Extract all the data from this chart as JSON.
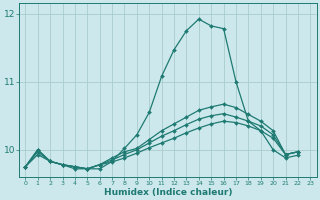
{
  "xlabel": "Humidex (Indice chaleur)",
  "xlim": [
    -0.5,
    23.5
  ],
  "ylim": [
    9.6,
    12.15
  ],
  "yticks": [
    10,
    11,
    12
  ],
  "xtick_labels": [
    "0",
    "1",
    "2",
    "3",
    "4",
    "5",
    "6",
    "7",
    "8",
    "9",
    "10",
    "11",
    "12",
    "13",
    "14",
    "15",
    "16",
    "17",
    "18",
    "19",
    "20",
    "21",
    "22",
    "23"
  ],
  "bg_color": "#cce8ec",
  "grid_color": "#aacccc",
  "line_color": "#1e7a72",
  "series": [
    [
      9.75,
      10.0,
      9.83,
      9.78,
      9.72,
      9.72,
      9.72,
      9.83,
      10.02,
      10.22,
      10.55,
      11.08,
      11.47,
      11.75,
      11.92,
      11.82,
      11.78,
      11.0,
      10.42,
      10.28,
      10.0,
      9.88,
      9.92,
      null
    ],
    [
      9.75,
      10.0,
      9.83,
      9.78,
      9.75,
      9.72,
      9.78,
      9.88,
      9.97,
      10.02,
      10.15,
      10.28,
      10.38,
      10.48,
      10.58,
      10.63,
      10.67,
      10.62,
      10.52,
      10.42,
      10.28,
      9.93,
      9.97,
      null
    ],
    [
      9.75,
      9.97,
      9.83,
      9.78,
      9.75,
      9.72,
      9.78,
      9.85,
      9.93,
      10.0,
      10.1,
      10.2,
      10.28,
      10.37,
      10.45,
      10.5,
      10.53,
      10.48,
      10.42,
      10.35,
      10.22,
      9.93,
      9.97,
      null
    ],
    [
      9.75,
      9.93,
      9.83,
      9.78,
      9.75,
      9.72,
      9.78,
      9.82,
      9.88,
      9.95,
      10.03,
      10.1,
      10.17,
      10.25,
      10.32,
      10.38,
      10.42,
      10.4,
      10.35,
      10.28,
      10.17,
      9.93,
      9.97,
      null
    ]
  ]
}
